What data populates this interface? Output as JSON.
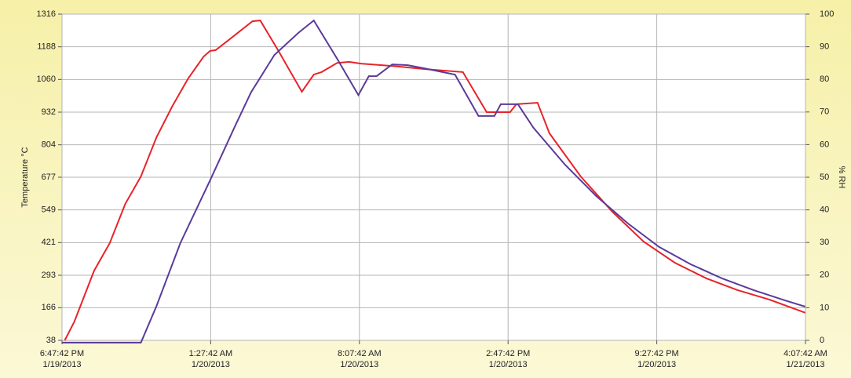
{
  "chart_data": {
    "type": "line",
    "ylabel": "Temperature °C",
    "y2label": "% RH",
    "xlim": [
      "2013-01-19T18:47:42",
      "2013-01-21T04:07:42"
    ],
    "xticks": [
      {
        "value": "2013-01-19T18:47:42",
        "label": [
          "6:47:42 PM",
          "1/19/2013"
        ]
      },
      {
        "value": "2013-01-20T01:27:42",
        "label": [
          "1:27:42 AM",
          "1/20/2013"
        ]
      },
      {
        "value": "2013-01-20T08:07:42",
        "label": [
          "8:07:42 AM",
          "1/20/2013"
        ]
      },
      {
        "value": "2013-01-20T14:47:42",
        "label": [
          "2:47:42 PM",
          "1/20/2013"
        ]
      },
      {
        "value": "2013-01-20T21:27:42",
        "label": [
          "9:27:42 PM",
          "1/20/2013"
        ]
      },
      {
        "value": "2013-01-21T04:07:42",
        "label": [
          "4:07:42 AM",
          "1/21/2013"
        ]
      }
    ],
    "ylim": [
      38,
      1316
    ],
    "yticks": [
      38,
      166,
      293,
      421,
      549,
      677,
      804,
      932,
      1060,
      1188,
      1316
    ],
    "y2lim": [
      0,
      100
    ],
    "y2ticks": [
      0,
      10,
      20,
      30,
      40,
      50,
      60,
      70,
      80,
      90,
      100
    ],
    "grid": true,
    "series": [
      {
        "color": "#e8232a",
        "x": [
          "2013-01-19T18:55",
          "2013-01-19T19:21",
          "2013-01-19T20:14",
          "2013-01-19T20:56",
          "2013-01-19T21:38",
          "2013-01-19T22:20",
          "2013-01-19T23:02",
          "2013-01-19T23:45",
          "2013-01-20T00:27",
          "2013-01-20T01:09",
          "2013-01-20T01:26",
          "2013-01-20T01:41",
          "2013-01-20T02:13",
          "2013-01-20T03:20",
          "2013-01-20T03:41",
          "2013-01-20T04:30",
          "2013-01-20T05:33",
          "2013-01-20T06:05",
          "2013-01-20T06:26",
          "2013-01-20T07:08",
          "2013-01-20T07:40",
          "2013-01-20T08:12",
          "2013-01-20T09:36",
          "2013-01-20T11:01",
          "2013-01-20T12:46",
          "2013-01-20T13:50",
          "2013-01-20T14:53",
          "2013-01-20T15:10",
          "2013-01-20T16:07",
          "2013-01-20T16:39",
          "2013-01-20T18:03",
          "2013-01-20T19:28",
          "2013-01-20T20:52",
          "2013-01-20T22:16",
          "2013-01-20T23:41",
          "2013-01-21T01:05",
          "2013-01-21T02:30",
          "2013-01-21T04:07"
        ],
        "values": [
          38,
          112,
          311,
          419,
          573,
          680,
          834,
          957,
          1064,
          1150,
          1172,
          1175,
          1211,
          1288,
          1291,
          1172,
          1012,
          1079,
          1089,
          1125,
          1129,
          1122,
          1113,
          1101,
          1089,
          932,
          932,
          963,
          969,
          849,
          680,
          542,
          425,
          342,
          281,
          235,
          198,
          146
        ]
      },
      {
        "color": "#5b3a9a",
        "x": [
          "2013-01-19T18:47",
          "2013-01-19T22:20",
          "2013-01-19T23:02",
          "2013-01-20T00:06",
          "2013-01-20T01:26",
          "2013-01-20T02:34",
          "2013-01-20T03:16",
          "2013-01-20T04:19",
          "2013-01-20T05:23",
          "2013-01-20T06:05",
          "2013-01-20T07:08",
          "2013-01-20T08:05",
          "2013-01-20T08:33",
          "2013-01-20T08:54",
          "2013-01-20T09:36",
          "2013-01-20T10:18",
          "2013-01-20T11:01",
          "2013-01-20T12:25",
          "2013-01-20T13:28",
          "2013-01-20T14:11",
          "2013-01-20T14:28",
          "2013-01-20T15:14",
          "2013-01-20T15:56",
          "2013-01-20T17:21",
          "2013-01-20T18:45",
          "2013-01-20T20:10",
          "2013-01-20T21:34",
          "2013-01-20T22:59",
          "2013-01-21T00:23",
          "2013-01-21T01:48",
          "2013-01-21T03:12",
          "2013-01-21T04:07"
        ],
        "values": [
          29,
          29,
          173,
          419,
          665,
          880,
          1009,
          1156,
          1242,
          1291,
          1141,
          999,
          1073,
          1073,
          1119,
          1116,
          1104,
          1079,
          917,
          917,
          963,
          963,
          871,
          726,
          603,
          496,
          404,
          336,
          281,
          235,
          195,
          170
        ]
      }
    ]
  }
}
